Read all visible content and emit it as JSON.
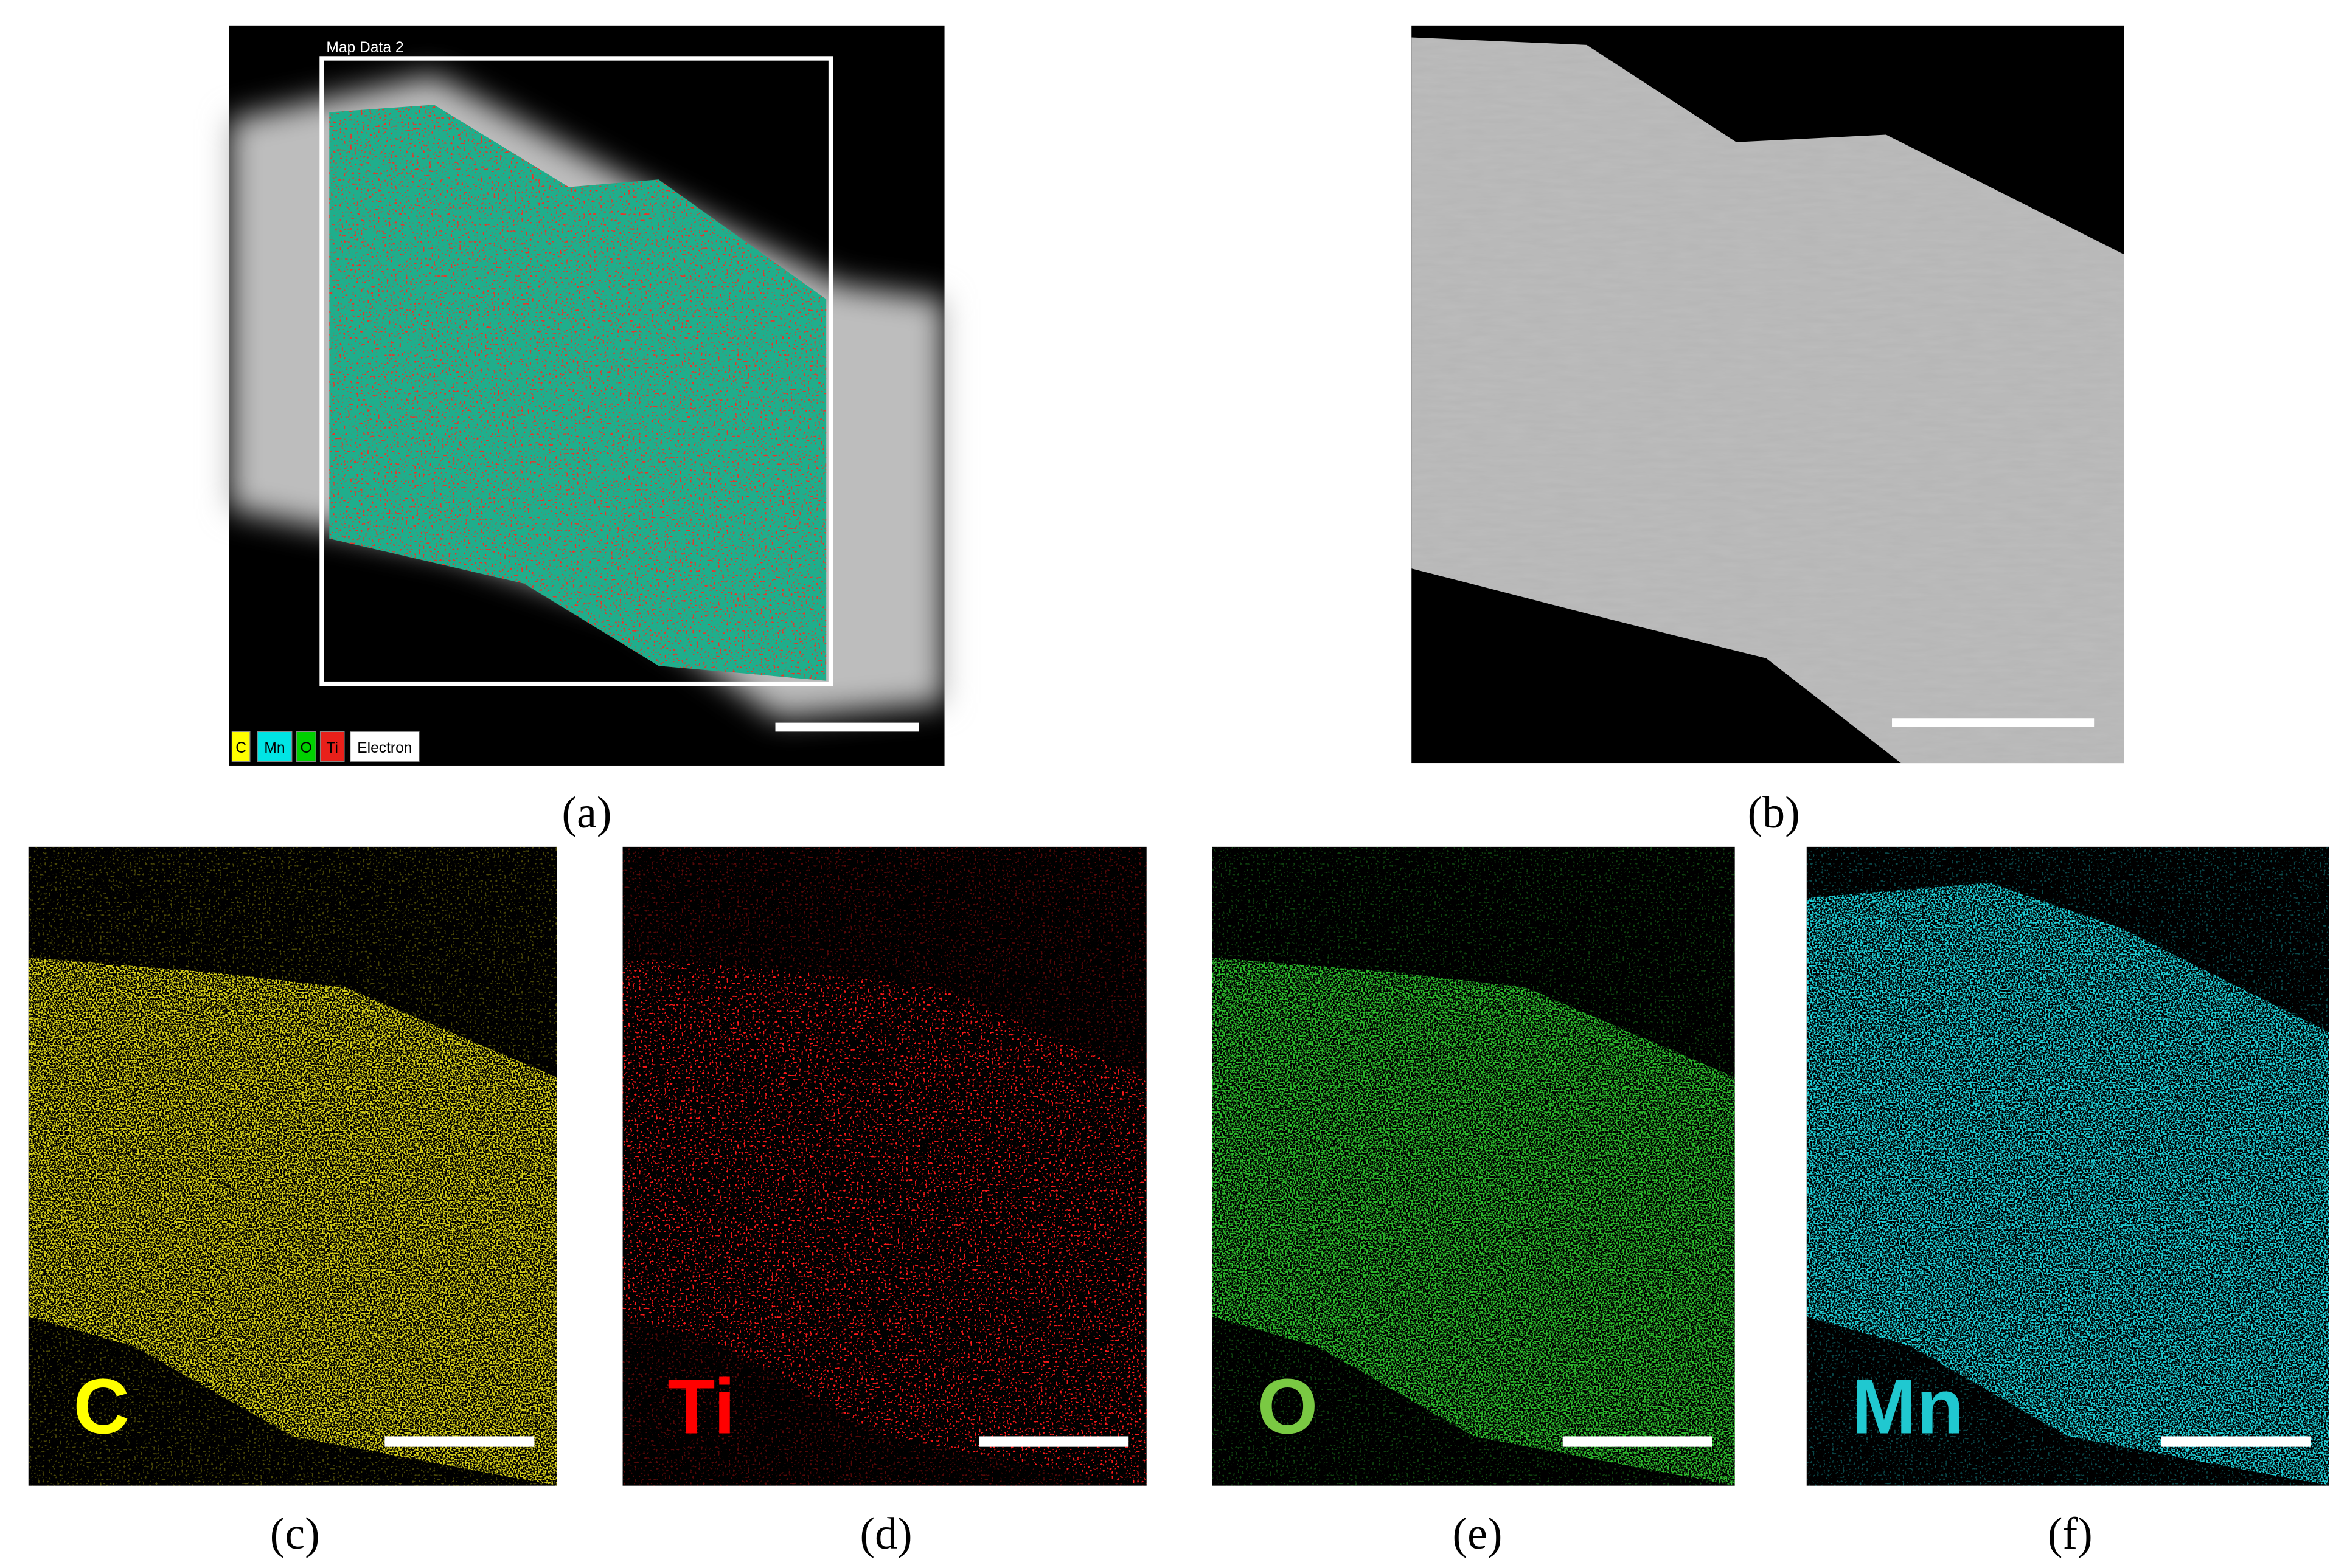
{
  "panels": [
    {
      "caption": "(a)",
      "title": "Map Data 2",
      "legend": [
        "C",
        "Mn",
        "O",
        "Ti",
        "Electron"
      ]
    },
    {
      "caption": "(b)"
    },
    {
      "caption": "(c)",
      "element": "C"
    },
    {
      "caption": "(d)",
      "element": "Ti"
    },
    {
      "caption": "(e)",
      "element": "O"
    },
    {
      "caption": "(f)",
      "element": "Mn"
    }
  ]
}
